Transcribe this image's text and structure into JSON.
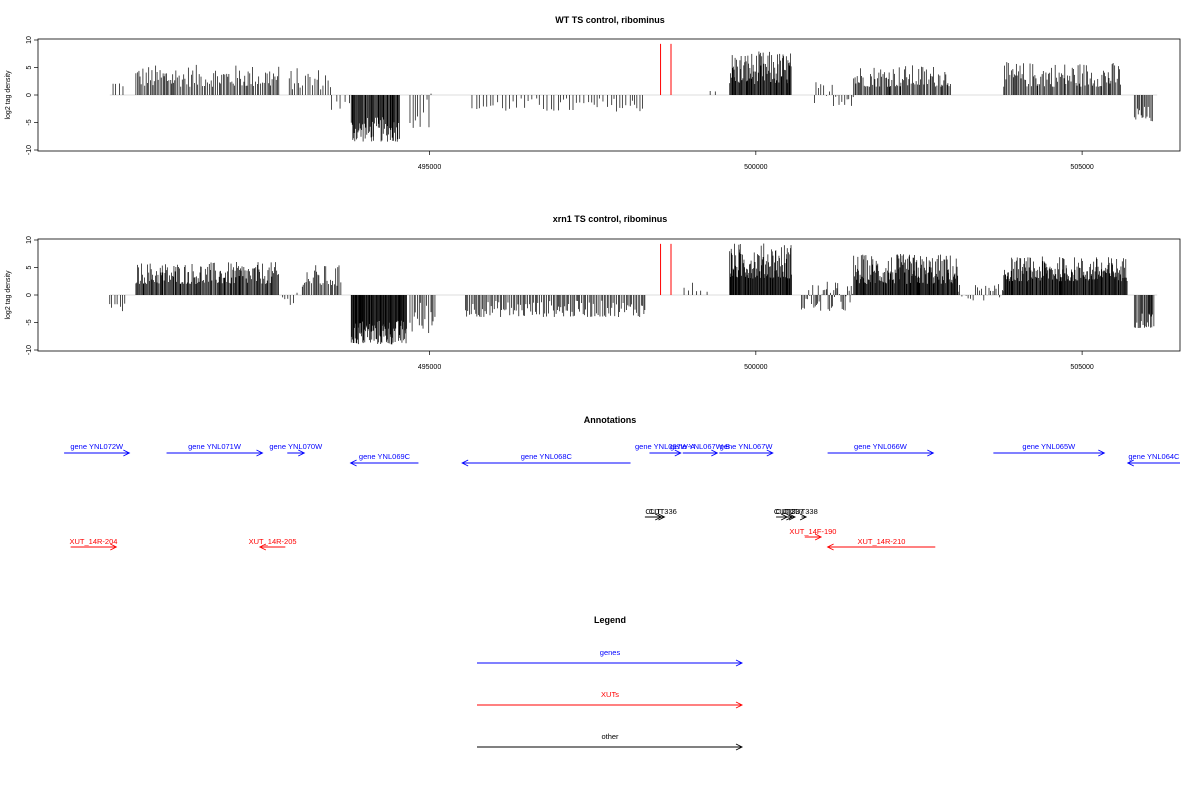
{
  "colors": {
    "genes": "#0000ff",
    "xuts": "#ff0000",
    "other": "#000000",
    "signal": "#000000",
    "highlight": "#ff0000",
    "baseline": "#bebebe"
  },
  "chart_data": [
    {
      "type": "bar",
      "title": "WT TS control, ribominus",
      "ylabel": "log2 tag density",
      "xlim": [
        489000,
        506500
      ],
      "ylim": [
        -10,
        10
      ],
      "yticks": [
        -10,
        -5,
        0,
        5,
        10
      ],
      "xticks": [
        495000,
        500000,
        505000
      ],
      "xtick_labels": [
        "495000",
        "500000",
        "505000"
      ],
      "grid": false,
      "highlight_lines": [
        {
          "x": 498540,
          "y": 9.3
        },
        {
          "x": 498700,
          "y": 9.3
        }
      ],
      "segments": [
        {
          "from": 490150,
          "to": 490350,
          "min": 1.5,
          "max": 2.5,
          "step": 45
        },
        {
          "from": 490500,
          "to": 492700,
          "min": 1.5,
          "max": 5.5,
          "step": 22
        },
        {
          "from": 492850,
          "to": 493500,
          "min": 1.0,
          "max": 5.0,
          "step": 30
        },
        {
          "from": 493500,
          "to": 493800,
          "min": -3.0,
          "max": -0.5,
          "step": 60
        },
        {
          "from": 493800,
          "to": 494550,
          "min": -8.5,
          "max": -4.0,
          "step": 12
        },
        {
          "from": 494700,
          "to": 495050,
          "min": -6.0,
          "max": 1.0,
          "step": 40
        },
        {
          "from": 495650,
          "to": 498300,
          "min": -3.0,
          "max": -0.5,
          "step": 55
        },
        {
          "from": 499300,
          "to": 499400,
          "min": 0.5,
          "max": 1.0,
          "step": 60
        },
        {
          "from": 499600,
          "to": 500550,
          "min": 2.0,
          "max": 8.0,
          "step": 11
        },
        {
          "from": 500900,
          "to": 501500,
          "min": -2.0,
          "max": 2.5,
          "step": 35
        },
        {
          "from": 501500,
          "to": 503000,
          "min": 1.5,
          "max": 5.5,
          "step": 18
        },
        {
          "from": 503800,
          "to": 505600,
          "min": 1.5,
          "max": 6.0,
          "step": 18
        },
        {
          "from": 505800,
          "to": 506100,
          "min": -5.0,
          "max": -2.0,
          "step": 20
        }
      ]
    },
    {
      "type": "bar",
      "title": "xrn1 TS control, ribominus",
      "ylabel": "log2 tag density",
      "xlim": [
        489000,
        506500
      ],
      "ylim": [
        -10,
        10
      ],
      "yticks": [
        -10,
        -5,
        0,
        5,
        10
      ],
      "xticks": [
        495000,
        500000,
        505000
      ],
      "xtick_labels": [
        "495000",
        "500000",
        "505000"
      ],
      "grid": false,
      "highlight_lines": [
        {
          "x": 498540,
          "y": 9.3
        },
        {
          "x": 498700,
          "y": 9.3
        }
      ],
      "segments": [
        {
          "from": 490100,
          "to": 490350,
          "min": -3.0,
          "max": -1.5,
          "step": 40
        },
        {
          "from": 490500,
          "to": 492700,
          "min": 2.0,
          "max": 6.0,
          "step": 14
        },
        {
          "from": 492750,
          "to": 493050,
          "min": -2.5,
          "max": 1.5,
          "step": 40
        },
        {
          "from": 493050,
          "to": 493650,
          "min": 1.5,
          "max": 5.5,
          "step": 22
        },
        {
          "from": 493800,
          "to": 494650,
          "min": -9.0,
          "max": -4.5,
          "step": 9
        },
        {
          "from": 494700,
          "to": 495100,
          "min": -7.0,
          "max": -1.0,
          "step": 25
        },
        {
          "from": 495550,
          "to": 498300,
          "min": -4.0,
          "max": -1.0,
          "step": 22
        },
        {
          "from": 498900,
          "to": 499300,
          "min": 0.5,
          "max": 2.5,
          "step": 90
        },
        {
          "from": 499600,
          "to": 500550,
          "min": 3.0,
          "max": 9.5,
          "step": 9
        },
        {
          "from": 500700,
          "to": 501500,
          "min": -3.0,
          "max": 2.5,
          "step": 20
        },
        {
          "from": 501500,
          "to": 503100,
          "min": 2.0,
          "max": 7.5,
          "step": 10
        },
        {
          "from": 503100,
          "to": 503800,
          "min": -1.0,
          "max": 2.0,
          "step": 30
        },
        {
          "from": 503800,
          "to": 505700,
          "min": 2.5,
          "max": 7.0,
          "step": 10
        },
        {
          "from": 505800,
          "to": 506100,
          "min": -6.0,
          "max": -3.0,
          "step": 15
        }
      ]
    }
  ],
  "annotations": {
    "title": "Annotations",
    "genes": [
      {
        "label": "gene YNL072W",
        "from": 489400,
        "to": 490400,
        "strand": "+"
      },
      {
        "label": "gene YNL071W",
        "from": 490970,
        "to": 492440,
        "strand": "+"
      },
      {
        "label": "gene YNL070W",
        "from": 492820,
        "to": 493080,
        "strand": "+"
      },
      {
        "label": "gene YNL069C",
        "from": 493790,
        "to": 494830,
        "strand": "-"
      },
      {
        "label": "gene YNL068C",
        "from": 495500,
        "to": 498080,
        "strand": "-"
      },
      {
        "label": "gene YNL067W-A",
        "from": 498370,
        "to": 498850,
        "strand": "+"
      },
      {
        "label": "gene YNL067W-B",
        "from": 498880,
        "to": 499410,
        "strand": "+"
      },
      {
        "label": "gene YNL067W",
        "from": 499440,
        "to": 500260,
        "strand": "+"
      },
      {
        "label": "gene YNL066W",
        "from": 501100,
        "to": 502720,
        "strand": "+"
      },
      {
        "label": "gene YNL065W",
        "from": 503640,
        "to": 505340,
        "strand": "+"
      },
      {
        "label": "gene YNL064C",
        "from": 505700,
        "to": 506500,
        "strand": "-"
      }
    ],
    "other": [
      {
        "label": "CUT",
        "from": 498300,
        "to": 498550,
        "strand": "+"
      },
      {
        "label": "CUT336",
        "from": 498550,
        "to": 498600,
        "strand": "+"
      },
      {
        "label": "CUT",
        "from": 500310,
        "to": 500480,
        "strand": "+"
      },
      {
        "label": "CUT337",
        "from": 500480,
        "to": 500560,
        "strand": "+"
      },
      {
        "label": "CUT338",
        "from": 500700,
        "to": 500770,
        "strand": "+"
      },
      {
        "label": "CUT",
        "from": 500470,
        "to": 500600,
        "strand": "+"
      }
    ],
    "xuts": [
      {
        "label": "XUT_14R-204",
        "from": 489500,
        "to": 490200,
        "strand": "+"
      },
      {
        "label": "XUT_14R-205",
        "from": 492400,
        "to": 492790,
        "strand": "-"
      },
      {
        "label": "XUT_14F-190",
        "from": 500750,
        "to": 501000,
        "strand": "+"
      },
      {
        "label": "XUT_14R-210",
        "from": 501100,
        "to": 502750,
        "strand": "-"
      }
    ]
  },
  "legend": {
    "title": "Legend",
    "items": [
      {
        "label": "genes",
        "key": "genes"
      },
      {
        "label": "XUTs",
        "key": "xuts"
      },
      {
        "label": "other",
        "key": "other"
      }
    ]
  }
}
